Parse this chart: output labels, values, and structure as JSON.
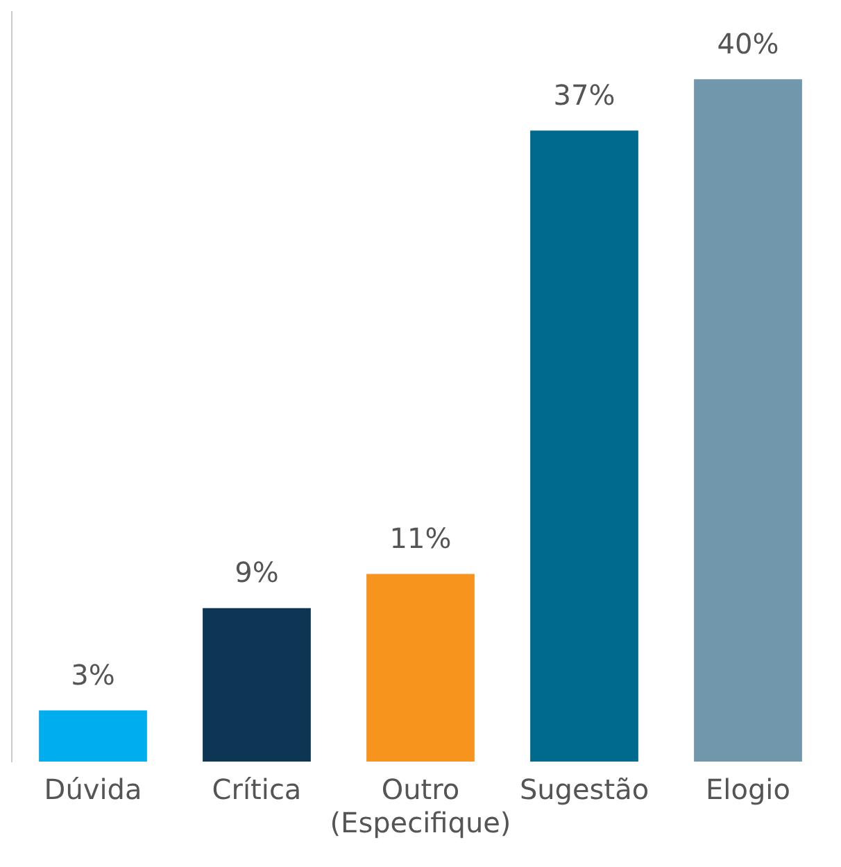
{
  "chart_data": {
    "type": "bar",
    "categories": [
      "Dúvida",
      "Crítica",
      "Outro (Especifique)",
      "Sugestão",
      "Elogio"
    ],
    "values": [
      3,
      9,
      11,
      37,
      40
    ],
    "colors": [
      "#00aeef",
      "#0d3554",
      "#f7941d",
      "#006a8e",
      "#7097ab"
    ],
    "data_labels": true,
    "value_labels": [
      "3%",
      "9%",
      "11%",
      "37%",
      "40%"
    ]
  }
}
